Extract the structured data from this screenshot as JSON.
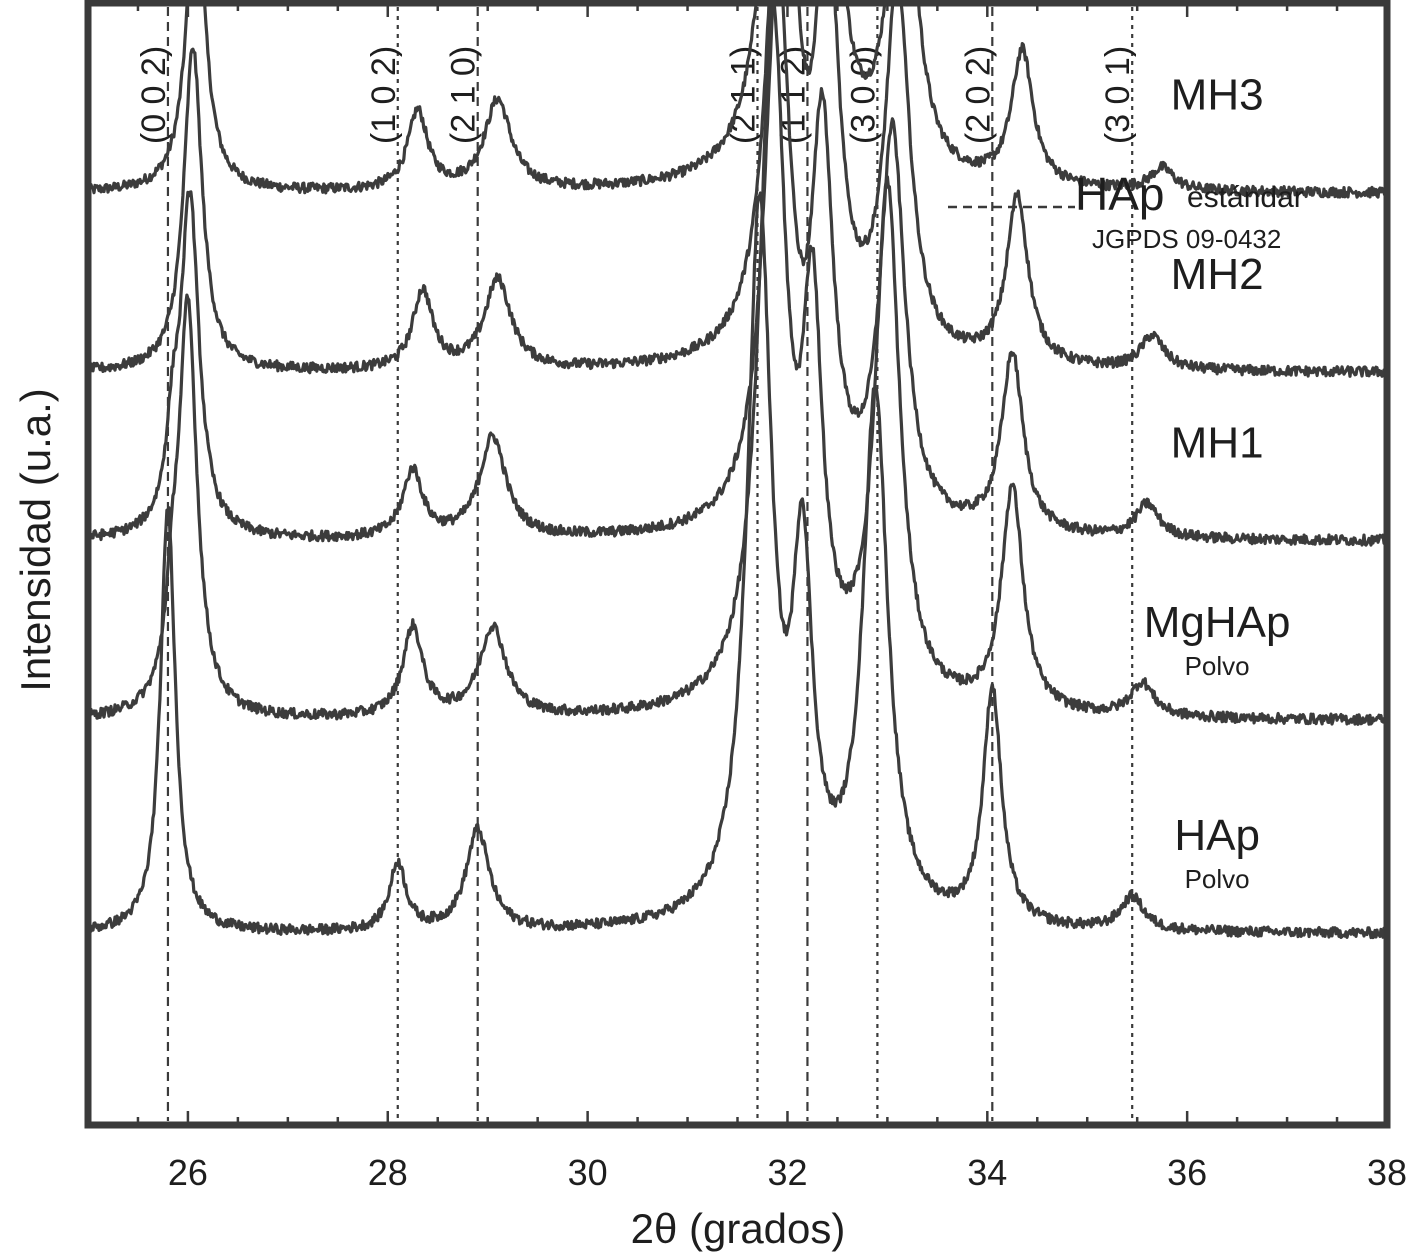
{
  "chart_data": {
    "type": "line",
    "title": "",
    "xlabel": "2θ (grados)",
    "ylabel": "Intensidad (u.a.)",
    "xlim": [
      25,
      38
    ],
    "xticks": [
      26,
      28,
      30,
      32,
      34,
      36,
      38
    ],
    "grid": false,
    "legend": {
      "position": "top-right",
      "main": "HAp",
      "sub": "estándar",
      "code": "JGPDS 09-0432",
      "line_style": "dashed"
    },
    "reference_peaks": [
      {
        "hkl": "(0 0 2)",
        "x": 25.8
      },
      {
        "hkl": "(1 0 2)",
        "x": 28.1
      },
      {
        "hkl": "(2 1 0)",
        "x": 28.9
      },
      {
        "hkl": "(2 1 1)",
        "x": 31.7
      },
      {
        "hkl": "(1 1 2)",
        "x": 32.2
      },
      {
        "hkl": "(3 0 0)",
        "x": 32.9
      },
      {
        "hkl": "(2 0 2)",
        "x": 34.05
      },
      {
        "hkl": "(3 0 1)",
        "x": 35.45
      }
    ],
    "series": [
      {
        "name": "MH3",
        "sub": "",
        "baseline": 0.83,
        "color": "#3c3c3c",
        "peaks": [
          {
            "x": 26.08,
            "h": 0.27,
            "w": 0.11
          },
          {
            "x": 28.3,
            "h": 0.07,
            "w": 0.12
          },
          {
            "x": 29.1,
            "h": 0.08,
            "w": 0.16
          },
          {
            "x": 31.95,
            "h": 0.58,
            "w": 0.16
          },
          {
            "x": 32.4,
            "h": 0.37,
            "w": 0.13
          },
          {
            "x": 33.15,
            "h": 0.33,
            "w": 0.15
          },
          {
            "x": 34.35,
            "h": 0.12,
            "w": 0.13
          },
          {
            "x": 35.75,
            "h": 0.02,
            "w": 0.14
          }
        ]
      },
      {
        "name": "MH2",
        "sub": "",
        "baseline": 0.67,
        "color": "#3c3c3c",
        "peaks": [
          {
            "x": 26.05,
            "h": 0.29,
            "w": 0.11
          },
          {
            "x": 28.35,
            "h": 0.07,
            "w": 0.12
          },
          {
            "x": 29.1,
            "h": 0.08,
            "w": 0.16
          },
          {
            "x": 31.95,
            "h": 0.53,
            "w": 0.16
          },
          {
            "x": 32.4,
            "h": 0.36,
            "w": 0.13
          },
          {
            "x": 33.1,
            "h": 0.33,
            "w": 0.15
          },
          {
            "x": 34.3,
            "h": 0.15,
            "w": 0.13
          },
          {
            "x": 35.65,
            "h": 0.03,
            "w": 0.14
          }
        ]
      },
      {
        "name": "MH1",
        "sub": "",
        "baseline": 0.52,
        "color": "#3c3c3c",
        "peaks": [
          {
            "x": 25.85,
            "h": 0.07,
            "w": 0.08
          },
          {
            "x": 26.02,
            "h": 0.3,
            "w": 0.11
          },
          {
            "x": 28.25,
            "h": 0.06,
            "w": 0.12
          },
          {
            "x": 29.05,
            "h": 0.09,
            "w": 0.16
          },
          {
            "x": 31.9,
            "h": 0.49,
            "w": 0.16
          },
          {
            "x": 32.35,
            "h": 0.33,
            "w": 0.13
          },
          {
            "x": 33.05,
            "h": 0.35,
            "w": 0.15
          },
          {
            "x": 34.25,
            "h": 0.16,
            "w": 0.13
          },
          {
            "x": 35.6,
            "h": 0.03,
            "w": 0.14
          }
        ]
      },
      {
        "name": "MgHAp",
        "sub": "Polvo",
        "baseline": 0.36,
        "color": "#3c3c3c",
        "peaks": [
          {
            "x": 25.85,
            "h": 0.07,
            "w": 0.08
          },
          {
            "x": 26.0,
            "h": 0.36,
            "w": 0.11
          },
          {
            "x": 28.25,
            "h": 0.08,
            "w": 0.12
          },
          {
            "x": 29.05,
            "h": 0.08,
            "w": 0.16
          },
          {
            "x": 31.85,
            "h": 0.61,
            "w": 0.16
          },
          {
            "x": 32.25,
            "h": 0.32,
            "w": 0.12
          },
          {
            "x": 33.0,
            "h": 0.46,
            "w": 0.15
          },
          {
            "x": 34.25,
            "h": 0.2,
            "w": 0.13
          },
          {
            "x": 35.55,
            "h": 0.03,
            "w": 0.14
          }
        ]
      },
      {
        "name": "HAp",
        "sub": "Polvo",
        "baseline": 0.17,
        "color": "#3c3c3c",
        "peaks": [
          {
            "x": 25.8,
            "h": 0.38,
            "w": 0.09
          },
          {
            "x": 28.1,
            "h": 0.06,
            "w": 0.1
          },
          {
            "x": 28.9,
            "h": 0.09,
            "w": 0.14
          },
          {
            "x": 31.72,
            "h": 0.63,
            "w": 0.15
          },
          {
            "x": 32.15,
            "h": 0.3,
            "w": 0.12
          },
          {
            "x": 32.88,
            "h": 0.47,
            "w": 0.15
          },
          {
            "x": 34.05,
            "h": 0.21,
            "w": 0.11
          },
          {
            "x": 35.45,
            "h": 0.03,
            "w": 0.14
          }
        ]
      }
    ]
  }
}
